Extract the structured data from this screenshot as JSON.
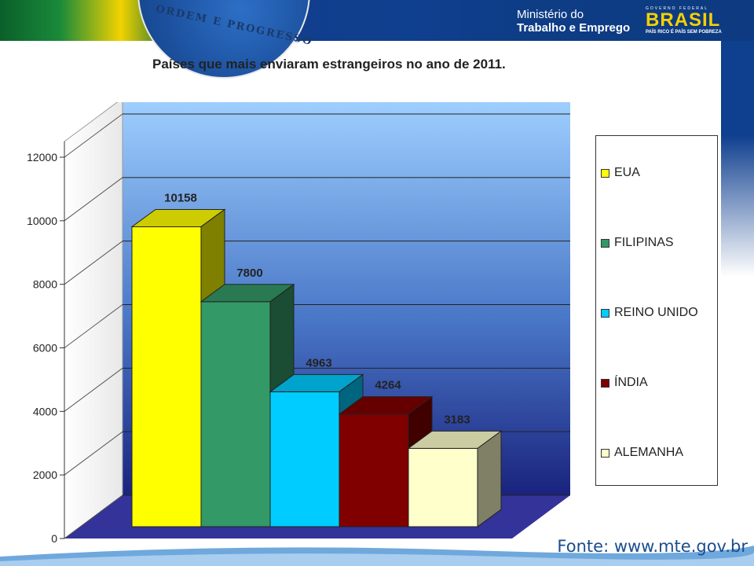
{
  "header": {
    "motto": "ORDEM E PROGRESSO",
    "ministry_line1": "Ministério do",
    "ministry_line2": "Trabalho e Emprego",
    "brasil_gov": "GOVERNO FEDERAL",
    "brasil_name": "BRASIL",
    "brasil_slogan": "PAÍS RICO É PAÍS SEM POBREZA"
  },
  "source": "Fonte: www.mte.gov.br",
  "colors": {
    "EUA": "#ffff00",
    "FILIPINAS": "#339966",
    "REINO UNIDO": "#00ccff",
    "ÍNDIA": "#800000",
    "ALEMANHA": "#ffffcc",
    "wall_top": "#99ccff",
    "wall_bottom": "#1a237e",
    "floor": "#333399"
  },
  "chart_data": {
    "type": "bar",
    "title": "Países que mais enviaram estrangeiros no ano de 2011.",
    "categories": [
      "EUA",
      "FILIPINAS",
      "REINO UNIDO",
      "ÍNDIA",
      "ALEMANHA"
    ],
    "values": [
      10158,
      7800,
      4963,
      4264,
      3183
    ],
    "data_labels": [
      "10158",
      "7800",
      "4963",
      "4264",
      "3183"
    ],
    "yticks": [
      "0",
      "2000",
      "4000",
      "6000",
      "8000",
      "10000",
      "12000"
    ],
    "ylim": [
      0,
      12000
    ],
    "grid": true,
    "legend": "right",
    "legend_entries": [
      "EUA",
      "FILIPINAS",
      "REINO UNIDO",
      "ÍNDIA",
      "ALEMANHA"
    ],
    "style": "3d"
  }
}
